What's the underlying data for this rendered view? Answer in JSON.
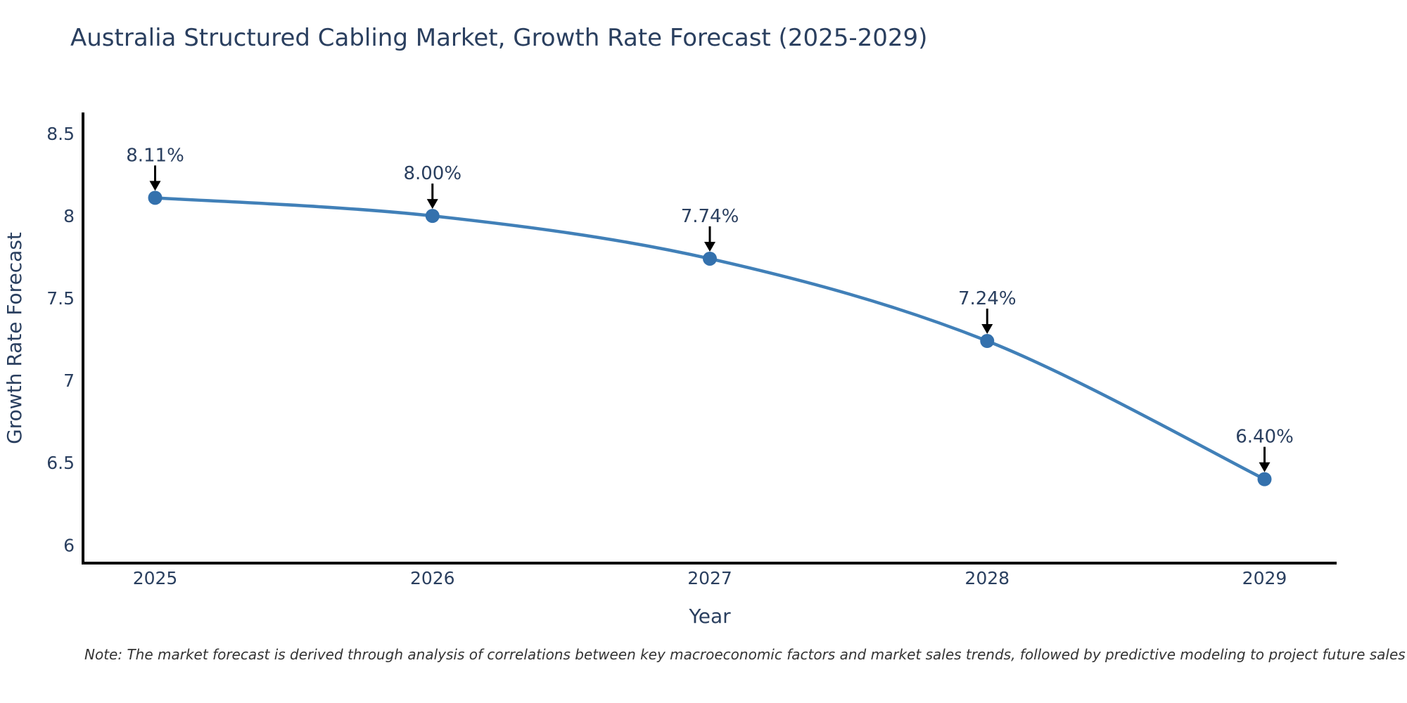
{
  "title": "Australia Structured Cabling Market, Growth Rate Forecast (2025-2029)",
  "note": "Note: The market forecast is derived through analysis of correlations between key macroeconomic factors and market sales trends, followed by predictive modeling to project future sales",
  "chart_data": {
    "type": "line",
    "title": "Australia Structured Cabling Market, Growth Rate Forecast (2025-2029)",
    "xlabel": "Year",
    "ylabel": "Growth Rate Forecast",
    "x": [
      2025,
      2026,
      2027,
      2028,
      2029
    ],
    "values": [
      8.11,
      8.0,
      7.74,
      7.24,
      6.4
    ],
    "point_labels": [
      "8.11%",
      "8.00%",
      "7.74%",
      "7.24%",
      "6.40%"
    ],
    "xtick_labels": [
      "2025",
      "2026",
      "2027",
      "2028",
      "2029"
    ],
    "ytick_values": [
      8.5,
      8.0,
      7.5,
      7.0,
      6.5,
      6.0
    ],
    "ytick_labels": [
      "8.5",
      "8",
      "7.5",
      "7",
      "6.5",
      "6"
    ],
    "xlim": [
      2024.74,
      2029.26
    ],
    "ylim": [
      5.89,
      8.62
    ],
    "line_shape": "spline",
    "grid": false,
    "legend_position": "none",
    "colors": {
      "line": "#4180b8",
      "marker": "#3471ad",
      "arrow": "#000000",
      "axis_line": "#000000",
      "text": "#2a3f5f",
      "note": "#333333",
      "background": "#ffffff"
    }
  }
}
